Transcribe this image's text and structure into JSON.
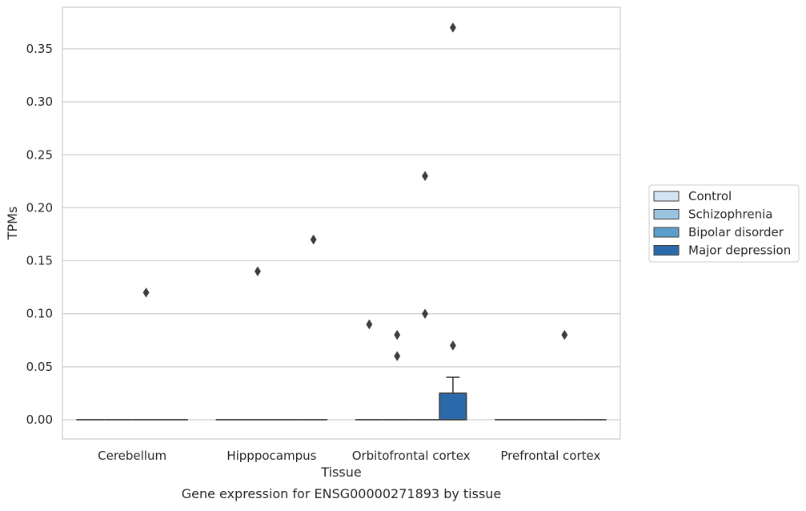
{
  "chart_data": {
    "type": "box",
    "xlabel": "Tissue",
    "ylabel": "TPMs",
    "caption": "Gene expression for ENSG00000271893 by tissue",
    "categories": [
      "Cerebellum",
      "Hipppocampus",
      "Orbitofrontal cortex",
      "Prefrontal cortex"
    ],
    "ylim": [
      -0.018,
      0.388
    ],
    "yticks": [
      0.0,
      0.05,
      0.1,
      0.15,
      0.2,
      0.25,
      0.3,
      0.35
    ],
    "ytick_labels": [
      "0.00",
      "0.05",
      "0.10",
      "0.15",
      "0.20",
      "0.25",
      "0.30",
      "0.35"
    ],
    "grid": true,
    "legend_position": "right",
    "series": [
      {
        "name": "Control",
        "color": "#d3e4f3",
        "boxes": [
          {
            "median": 0,
            "q1": 0,
            "q3": 0,
            "whisker_low": 0,
            "whisker_high": 0,
            "outliers": []
          },
          {
            "median": 0,
            "q1": 0,
            "q3": 0,
            "whisker_low": 0,
            "whisker_high": 0,
            "outliers": []
          },
          {
            "median": 0,
            "q1": 0,
            "q3": 0,
            "whisker_low": 0,
            "whisker_high": 0,
            "outliers": [
              0.09
            ]
          },
          {
            "median": 0,
            "q1": 0,
            "q3": 0,
            "whisker_low": 0,
            "whisker_high": 0,
            "outliers": []
          }
        ]
      },
      {
        "name": "Schizophrenia",
        "color": "#9ac4e0",
        "boxes": [
          {
            "median": 0,
            "q1": 0,
            "q3": 0,
            "whisker_low": 0,
            "whisker_high": 0,
            "outliers": []
          },
          {
            "median": 0,
            "q1": 0,
            "q3": 0,
            "whisker_low": 0,
            "whisker_high": 0,
            "outliers": [
              0.14
            ]
          },
          {
            "median": 0,
            "q1": 0,
            "q3": 0,
            "whisker_low": 0,
            "whisker_high": 0,
            "outliers": [
              0.06,
              0.08
            ]
          },
          {
            "median": 0,
            "q1": 0,
            "q3": 0,
            "whisker_low": 0,
            "whisker_high": 0,
            "outliers": []
          }
        ]
      },
      {
        "name": "Bipolar disorder",
        "color": "#5c9fcd",
        "boxes": [
          {
            "median": 0,
            "q1": 0,
            "q3": 0,
            "whisker_low": 0,
            "whisker_high": 0,
            "outliers": [
              0.12
            ]
          },
          {
            "median": 0,
            "q1": 0,
            "q3": 0,
            "whisker_low": 0,
            "whisker_high": 0,
            "outliers": []
          },
          {
            "median": 0,
            "q1": 0,
            "q3": 0,
            "whisker_low": 0,
            "whisker_high": 0,
            "outliers": [
              0.1,
              0.23
            ]
          },
          {
            "median": 0,
            "q1": 0,
            "q3": 0,
            "whisker_low": 0,
            "whisker_high": 0,
            "outliers": [
              0.08
            ]
          }
        ]
      },
      {
        "name": "Major depression",
        "color": "#2a6aaa",
        "boxes": [
          {
            "median": 0,
            "q1": 0,
            "q3": 0,
            "whisker_low": 0,
            "whisker_high": 0,
            "outliers": []
          },
          {
            "median": 0,
            "q1": 0,
            "q3": 0,
            "whisker_low": 0,
            "whisker_high": 0,
            "outliers": [
              0.17
            ]
          },
          {
            "median": 0,
            "q1": 0,
            "q3": 0.025,
            "whisker_low": 0,
            "whisker_high": 0.04,
            "outliers": [
              0.07,
              0.37
            ]
          },
          {
            "median": 0,
            "q1": 0,
            "q3": 0,
            "whisker_low": 0,
            "whisker_high": 0,
            "outliers": []
          }
        ]
      }
    ]
  }
}
